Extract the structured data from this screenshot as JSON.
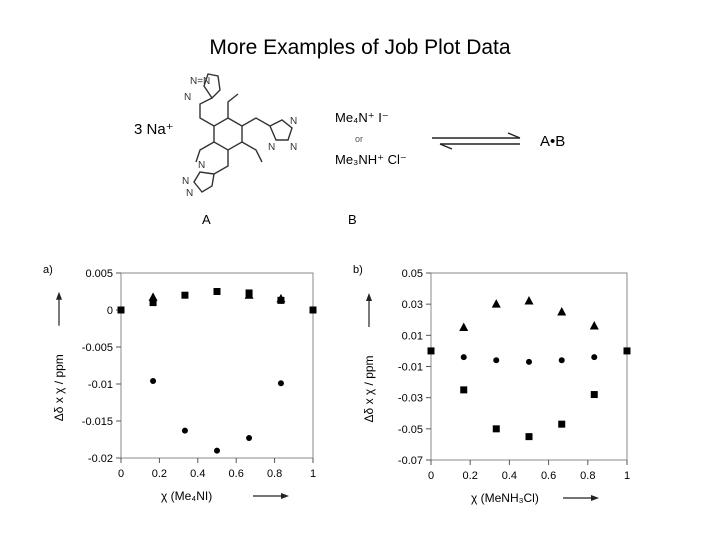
{
  "slide": {
    "title": "More Examples of Job Plot Data"
  },
  "scheme": {
    "counterion": "3 Na⁺",
    "tetrazole_ring": "N=N",
    "guest_1": "Me₄N⁺ I⁻",
    "or_label": "or",
    "guest_2": "Me₃NH⁺ Cl⁻",
    "product": "A•B",
    "label_a": "A",
    "label_b": "B"
  },
  "chart_data": [
    {
      "type": "scatter",
      "panel_label": "a)",
      "xlabel": "χ (Me₄NI)",
      "ylabel": "Δδ x χ / ppm",
      "xlim": [
        0,
        1
      ],
      "ylim": [
        -0.02,
        0.005
      ],
      "xticks": [
        0,
        0.2,
        0.4,
        0.6,
        0.8,
        1
      ],
      "xtick_labels": [
        "0",
        "0.2",
        "0.4",
        "0.6",
        "0.8",
        "1"
      ],
      "yticks": [
        0.005,
        0,
        -0.005,
        -0.01,
        -0.015,
        -0.02
      ],
      "ytick_labels": [
        "0.005",
        "0",
        "-0.005",
        "-0.01",
        "-0.015",
        "-0.02"
      ],
      "grid": false,
      "series": [
        {
          "marker": "square",
          "x": [
            0,
            0.167,
            0.333,
            0.5,
            0.667,
            0.833,
            1
          ],
          "y": [
            0,
            0.001,
            0.002,
            0.0025,
            0.0023,
            0.0013,
            0
          ]
        },
        {
          "marker": "triangle",
          "x": [
            0.167,
            0.667,
            0.833
          ],
          "y": [
            0.0017,
            0.002,
            0.0015
          ]
        },
        {
          "marker": "circle",
          "x": [
            0.167,
            0.333,
            0.5,
            0.667,
            0.833
          ],
          "y": [
            -0.0096,
            -0.0163,
            -0.019,
            -0.0173,
            -0.0099
          ]
        }
      ]
    },
    {
      "type": "scatter",
      "panel_label": "b)",
      "xlabel": "χ (MeNH₃Cl)",
      "ylabel": "Δδ x χ / ppm",
      "xlim": [
        0,
        1
      ],
      "ylim": [
        -0.07,
        0.05
      ],
      "xticks": [
        0,
        0.2,
        0.4,
        0.6,
        0.8,
        1
      ],
      "xtick_labels": [
        "0",
        "0.2",
        "0.4",
        "0.6",
        "0.8",
        "1"
      ],
      "yticks": [
        0.05,
        0.03,
        0.01,
        -0.01,
        -0.03,
        -0.05,
        -0.07
      ],
      "ytick_labels": [
        "0.05",
        "0.03",
        "0.01",
        "-0.01",
        "-0.03",
        "-0.05",
        "-0.07"
      ],
      "grid": false,
      "series": [
        {
          "marker": "triangle",
          "x": [
            0.167,
            0.333,
            0.5,
            0.667,
            0.833
          ],
          "y": [
            0.015,
            0.03,
            0.032,
            0.025,
            0.016
          ]
        },
        {
          "marker": "circle",
          "x": [
            0.167,
            0.333,
            0.5,
            0.667,
            0.833
          ],
          "y": [
            -0.004,
            -0.006,
            -0.007,
            -0.006,
            -0.004
          ]
        },
        {
          "marker": "square",
          "x": [
            0,
            0.167,
            0.333,
            0.5,
            0.667,
            0.833,
            1
          ],
          "y": [
            0,
            -0.025,
            -0.05,
            -0.055,
            -0.047,
            -0.028,
            0
          ]
        }
      ]
    }
  ]
}
